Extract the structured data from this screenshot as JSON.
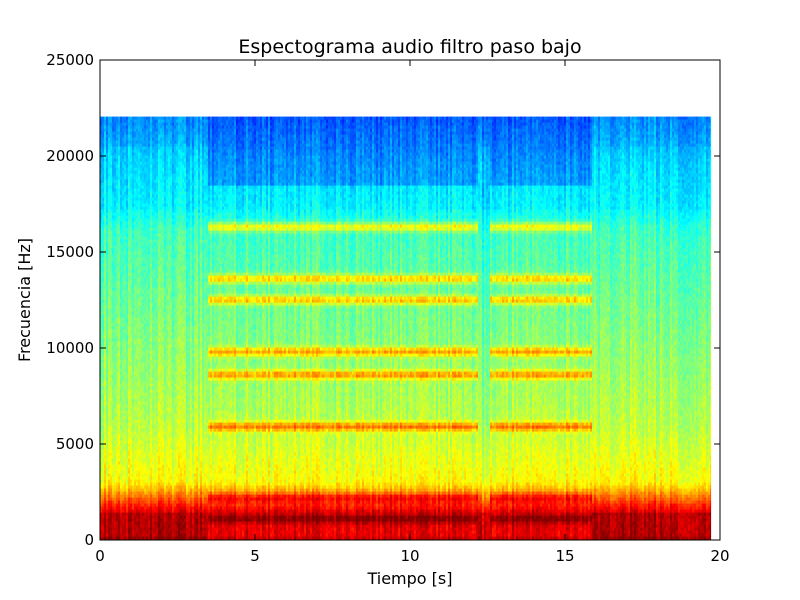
{
  "chart_data": {
    "type": "heatmap",
    "title": "Espectograma audio filtro paso bajo",
    "xlabel": "Tiempo [s]",
    "ylabel": "Frecuencia [Hz]",
    "xlim": [
      0,
      20
    ],
    "ylim": [
      0,
      25000
    ],
    "x_ticks": [
      0,
      5,
      10,
      15,
      20
    ],
    "y_ticks": [
      0,
      5000,
      10000,
      15000,
      20000,
      25000
    ],
    "colormap": "jet",
    "data_extent": {
      "t_start": 0,
      "t_end": 19.7,
      "f_max": 22050
    },
    "segments": [
      {
        "name": "silence",
        "t_start": 0.0,
        "t_end": 3.5,
        "tonal": false
      },
      {
        "name": "tone",
        "t_start": 3.5,
        "t_end": 12.2,
        "tonal": true
      },
      {
        "name": "gap",
        "t_start": 12.2,
        "t_end": 12.6,
        "tonal": false
      },
      {
        "name": "tone",
        "t_start": 12.6,
        "t_end": 15.9,
        "tonal": true
      },
      {
        "name": "silence",
        "t_start": 15.9,
        "t_end": 19.7,
        "tonal": false
      }
    ],
    "harmonic_bands_hz": [
      16300,
      13600,
      12500,
      9800,
      8600,
      5900,
      2200,
      1100
    ],
    "strong_band_hz": [
      0,
      1500
    ]
  }
}
